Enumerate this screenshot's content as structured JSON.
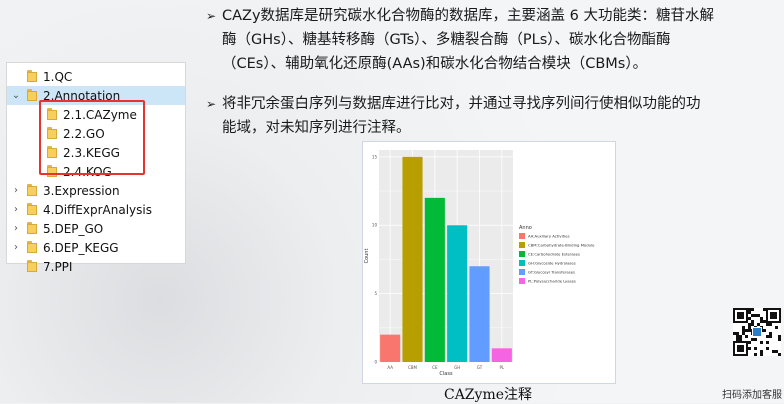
{
  "tree": {
    "items": [
      {
        "label": "1.QC",
        "chevron": ""
      },
      {
        "label": "2.Annotation",
        "chevron": "⌄"
      },
      {
        "label": "2.1.CAZyme",
        "chevron": ""
      },
      {
        "label": "2.2.GO",
        "chevron": ""
      },
      {
        "label": "2.3.KEGG",
        "chevron": ""
      },
      {
        "label": "2.4.KOG",
        "chevron": ""
      },
      {
        "label": "3.Expression",
        "chevron": "›"
      },
      {
        "label": "4.DiffExprAnalysis",
        "chevron": "›"
      },
      {
        "label": "5.DEP_GO",
        "chevron": "›"
      },
      {
        "label": "6.DEP_KEGG",
        "chevron": "›"
      },
      {
        "label": "7.PPI",
        "chevron": ""
      }
    ],
    "selected_label": "2.Annotation"
  },
  "bullets": [
    {
      "lines": [
        "CAZy数据库是研究碳水化合物酶的数据库，主要涵盖 6 大功能类：糖苷水解",
        "酶（GHs）、糖基转移酶（GTs）、多糖裂合酶（PLs）、碳水化合物酯酶",
        "（CEs）、辅助氧化还原酶(AAs)和碳水化合物结合模块（CBMs）。"
      ]
    },
    {
      "lines": [
        "将非冗余蛋白序列与数据库进行比对，并通过寻找序列间行使相似功能的功",
        "能域，对未知序列进行注释。"
      ]
    }
  ],
  "caption": "CAZyme注释",
  "qr_caption": "扫码添加客服",
  "chart_data": {
    "type": "bar",
    "categories": [
      "AA",
      "CBM",
      "CE",
      "GH",
      "GT",
      "PL"
    ],
    "values": [
      2,
      15,
      12,
      10,
      7,
      1
    ],
    "colors": [
      "#f8766d",
      "#b79f00",
      "#00ba38",
      "#00bfc4",
      "#619cff",
      "#f564e3"
    ],
    "xlabel": "Class",
    "ylabel": "Count",
    "ylim": [
      0,
      15.5
    ],
    "yticks": [
      "0",
      "5",
      "10",
      "15"
    ],
    "grid": true,
    "legend": {
      "title": "Anno",
      "placement": "right",
      "entries": [
        "AA:Auxiliary Activities",
        "CBM:Carbohydrate-Binding Module",
        "CE:Carbohydrate Esterases",
        "GH:Glycoside Hydrolases",
        "GT:Glycosyl Transferases",
        "PL:Polysaccharide Lyases"
      ]
    }
  }
}
